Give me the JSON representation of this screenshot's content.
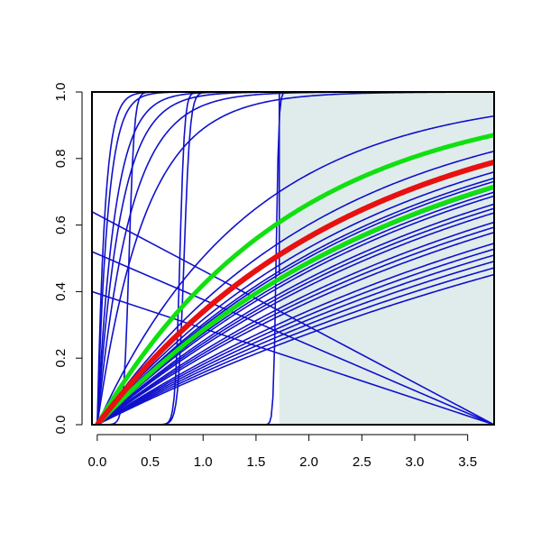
{
  "chart_data": {
    "type": "line",
    "title": "",
    "xlabel": "",
    "ylabel": "",
    "xlim": [
      -0.05,
      3.75
    ],
    "ylim": [
      0.0,
      1.0
    ],
    "x_ticks": [
      "0.0",
      "0.5",
      "1.0",
      "1.5",
      "2.0",
      "2.5",
      "3.0",
      "3.5"
    ],
    "x_tick_values": [
      0.0,
      0.5,
      1.0,
      1.5,
      2.0,
      2.5,
      3.0,
      3.5
    ],
    "y_ticks": [
      "0.0",
      "0.2",
      "0.4",
      "0.6",
      "0.8",
      "1.0"
    ],
    "y_tick_values": [
      0.0,
      0.2,
      0.4,
      0.6,
      0.8,
      1.0
    ],
    "shaded_region": {
      "x_from": 1.72,
      "x_to": 3.75,
      "color": "#e0ecec"
    },
    "grid": false,
    "legend": "none",
    "series_colors": {
      "main": "#1010cc",
      "highlight": "#e81010",
      "secondary": "#10e010"
    },
    "series": [
      {
        "color": "#1010cc",
        "width": 1.6,
        "kind": "saturating",
        "rate": 0.7
      },
      {
        "color": "#1010cc",
        "width": 1.6,
        "kind": "saturating",
        "rate": 0.55
      },
      {
        "color": "#1010cc",
        "width": 1.6,
        "kind": "saturating",
        "rate": 0.46
      },
      {
        "color": "#1010cc",
        "width": 1.6,
        "kind": "saturating",
        "rate": 0.42
      },
      {
        "color": "#1010cc",
        "width": 1.6,
        "kind": "saturating",
        "rate": 0.38
      },
      {
        "color": "#1010cc",
        "width": 1.6,
        "kind": "saturating",
        "rate": 0.35
      },
      {
        "color": "#1010cc",
        "width": 1.6,
        "kind": "saturating",
        "rate": 0.33
      },
      {
        "color": "#1010cc",
        "width": 1.6,
        "kind": "saturating",
        "rate": 0.31
      },
      {
        "color": "#1010cc",
        "width": 1.6,
        "kind": "saturating",
        "rate": 0.29
      },
      {
        "color": "#1010cc",
        "width": 1.6,
        "kind": "saturating",
        "rate": 0.27
      },
      {
        "color": "#1010cc",
        "width": 1.6,
        "kind": "saturating",
        "rate": 0.25
      },
      {
        "color": "#1010cc",
        "width": 1.6,
        "kind": "saturating",
        "rate": 0.23
      },
      {
        "color": "#1010cc",
        "width": 1.6,
        "kind": "saturating",
        "rate": 0.21
      },
      {
        "color": "#1010cc",
        "width": 1.6,
        "kind": "saturating",
        "rate": 0.19
      },
      {
        "color": "#1010cc",
        "width": 1.6,
        "kind": "saturating",
        "rate": 0.17
      },
      {
        "color": "#1010cc",
        "width": 1.6,
        "kind": "saturating",
        "rate": 0.16
      },
      {
        "color": "#1010cc",
        "width": 1.6,
        "kind": "saturating",
        "rate": 0.36
      },
      {
        "color": "#1010cc",
        "width": 1.6,
        "kind": "saturating",
        "rate": 0.32
      },
      {
        "color": "#1010cc",
        "width": 1.6,
        "kind": "saturating",
        "rate": 0.28
      },
      {
        "color": "#1010cc",
        "width": 1.6,
        "kind": "saturating",
        "rate": 0.24
      },
      {
        "color": "#1010cc",
        "width": 1.6,
        "kind": "saturating",
        "rate": 0.2
      },
      {
        "color": "#1010cc",
        "width": 1.6,
        "kind": "saturating",
        "rate": 0.18
      },
      {
        "color": "#1010cc",
        "width": 1.6,
        "kind": "jump",
        "rate": 0.35,
        "x_jump": 1.72,
        "y_after": 1.0
      },
      {
        "color": "#1010cc",
        "width": 1.6,
        "kind": "steep",
        "rate": 14
      },
      {
        "color": "#1010cc",
        "width": 1.6,
        "kind": "steep",
        "rate": 10
      },
      {
        "color": "#1010cc",
        "width": 1.6,
        "kind": "steep",
        "rate": 6
      },
      {
        "color": "#1010cc",
        "width": 1.6,
        "kind": "steep",
        "rate": 4.5
      },
      {
        "color": "#1010cc",
        "width": 1.6,
        "kind": "steep",
        "rate": 3.2
      },
      {
        "color": "#1010cc",
        "width": 1.6,
        "kind": "steep",
        "rate": 2.2
      },
      {
        "color": "#1010cc",
        "width": 1.6,
        "kind": "sigmoid",
        "center": 0.3,
        "steep": 40
      },
      {
        "color": "#1010cc",
        "width": 1.6,
        "kind": "sigmoid",
        "center": 0.78,
        "steep": 45
      },
      {
        "color": "#1010cc",
        "width": 1.6,
        "kind": "sigmoid",
        "center": 0.82,
        "steep": 35
      },
      {
        "color": "#1010cc",
        "width": 1.6,
        "kind": "sigmoid",
        "center": 1.69,
        "steep": 80
      },
      {
        "color": "#1010cc",
        "width": 1.6,
        "kind": "line",
        "from": [
          -0.05,
          0.64
        ],
        "to": [
          3.75,
          0.0
        ]
      },
      {
        "color": "#1010cc",
        "width": 1.6,
        "kind": "line",
        "from": [
          -0.05,
          0.52
        ],
        "to": [
          3.75,
          0.0
        ]
      },
      {
        "color": "#1010cc",
        "width": 1.6,
        "kind": "line",
        "from": [
          -0.05,
          0.4
        ],
        "to": [
          3.75,
          0.0
        ]
      },
      {
        "color": "#1010cc",
        "width": 1.6,
        "kind": "line",
        "from": [
          0.0,
          0.0
        ],
        "to": [
          3.75,
          0.0
        ]
      },
      {
        "color": "#10e010",
        "width": 5,
        "kind": "saturating",
        "rate": 0.545
      },
      {
        "color": "#10e010",
        "width": 5,
        "kind": "saturating",
        "rate": 0.335
      },
      {
        "color": "#e81010",
        "width": 6,
        "kind": "saturating",
        "rate": 0.415
      }
    ]
  }
}
